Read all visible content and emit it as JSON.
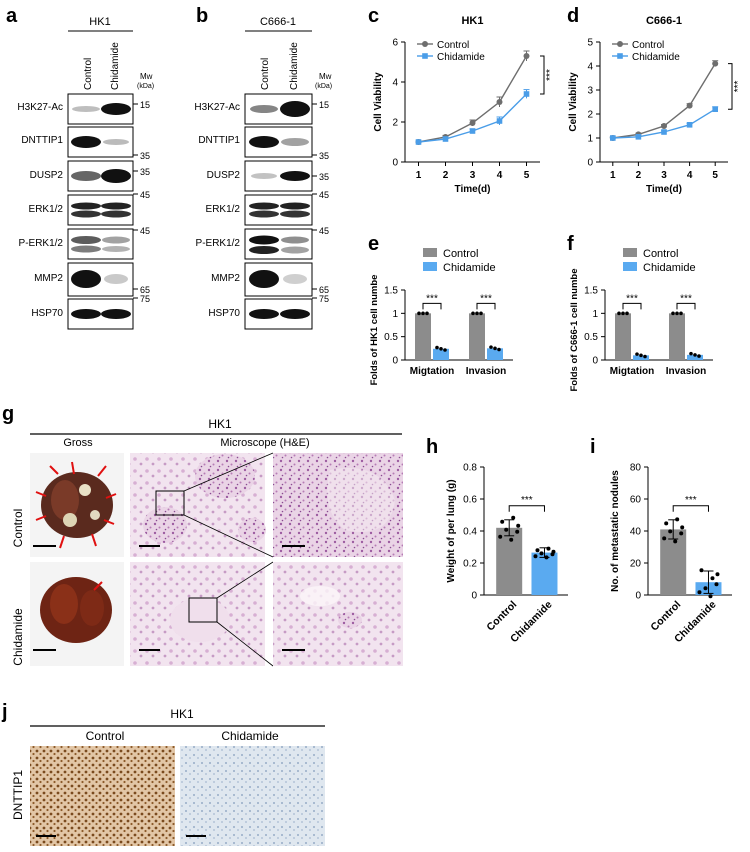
{
  "panel_letters": [
    "a",
    "b",
    "c",
    "d",
    "e",
    "f",
    "g",
    "h",
    "i",
    "j"
  ],
  "panel_a": {
    "cell_line": "HK1",
    "lanes": [
      "Control",
      "Chidamide"
    ],
    "mw_label": "Mw",
    "mw_unit": "(kDa)",
    "bands": [
      "H3K27-Ac",
      "DNTTIP1",
      "DUSP2",
      "ERK1/2",
      "P-ERK1/2",
      "MMP2",
      "HSP70"
    ],
    "markers": [
      "15",
      "35",
      "35",
      "45",
      "45",
      "65",
      "75"
    ]
  },
  "panel_b": {
    "cell_line": "C666-1",
    "lanes": [
      "Control",
      "Chidamide"
    ],
    "mw_label": "Mw",
    "mw_unit": "(kDa)",
    "bands": [
      "H3K27-Ac",
      "DNTTIP1",
      "DUSP2",
      "ERK1/2",
      "P-ERK1/2",
      "MMP2",
      "HSP70"
    ],
    "markers": [
      "15",
      "35",
      "35",
      "45",
      "45",
      "65",
      "75"
    ]
  },
  "legend": {
    "control": "Control",
    "chidamide": "Chidamide"
  },
  "colors": {
    "control": "#6e6e6e",
    "chidamide": "#4a9de8",
    "control_bar": "#8c8c8c",
    "chidamide_bar": "#5aaaf0"
  },
  "significance": "***",
  "chart_data": [
    {
      "panel": "c",
      "type": "line",
      "title": "HK1",
      "xlabel": "Time(d)",
      "ylabel": "Cell Viability",
      "x": [
        1,
        2,
        3,
        4,
        5
      ],
      "xlim": [
        0.5,
        5.5
      ],
      "ylim": [
        0,
        6
      ],
      "yticks": [
        0,
        2,
        4,
        6
      ],
      "series": [
        {
          "name": "Control",
          "values": [
            1.0,
            1.25,
            1.95,
            3.0,
            5.3
          ],
          "err": [
            0.05,
            0.08,
            0.15,
            0.25,
            0.25
          ]
        },
        {
          "name": "Chidamide",
          "values": [
            1.0,
            1.15,
            1.55,
            2.05,
            3.4
          ],
          "err": [
            0.05,
            0.06,
            0.1,
            0.2,
            0.22
          ]
        }
      ]
    },
    {
      "panel": "d",
      "type": "line",
      "title": "C666-1",
      "xlabel": "Time(d)",
      "ylabel": "Cell Viability",
      "x": [
        1,
        2,
        3,
        4,
        5
      ],
      "xlim": [
        0.5,
        5.5
      ],
      "ylim": [
        0,
        5
      ],
      "yticks": [
        0,
        1,
        2,
        3,
        4,
        5
      ],
      "series": [
        {
          "name": "Control",
          "values": [
            1.0,
            1.15,
            1.5,
            2.35,
            4.1
          ],
          "err": [
            0.04,
            0.05,
            0.06,
            0.08,
            0.12
          ]
        },
        {
          "name": "Chidamide",
          "values": [
            1.0,
            1.05,
            1.25,
            1.55,
            2.2
          ],
          "err": [
            0.04,
            0.04,
            0.05,
            0.06,
            0.1
          ]
        }
      ]
    },
    {
      "panel": "e",
      "type": "bar",
      "ylabel": "Folds of HK1 cell numbe",
      "categories": [
        "Migtation",
        "Invasion"
      ],
      "ylim": [
        0,
        1.5
      ],
      "yticks": [
        0,
        0.5,
        1.0,
        1.5
      ],
      "series": [
        {
          "name": "Control",
          "values": [
            1.0,
            1.0
          ]
        },
        {
          "name": "Chidamide",
          "values": [
            0.24,
            0.25
          ]
        }
      ]
    },
    {
      "panel": "f",
      "type": "bar",
      "ylabel": "Folds of C666-1 cell numbe",
      "categories": [
        "Migtation",
        "Invasion"
      ],
      "ylim": [
        0,
        1.5
      ],
      "yticks": [
        0,
        0.5,
        1.0,
        1.5
      ],
      "series": [
        {
          "name": "Control",
          "values": [
            1.0,
            1.0
          ]
        },
        {
          "name": "Chidamide",
          "values": [
            0.1,
            0.11
          ]
        }
      ]
    },
    {
      "panel": "h",
      "type": "bar",
      "ylabel": "Weight of per lung (g)",
      "categories": [
        "Control",
        "Chidamide"
      ],
      "ylim": [
        0,
        0.8
      ],
      "yticks": [
        0,
        0.2,
        0.4,
        0.6,
        0.8
      ],
      "values": [
        0.42,
        0.265
      ],
      "err": [
        0.05,
        0.03
      ]
    },
    {
      "panel": "i",
      "type": "bar",
      "ylabel": "No. of metastatic nodules",
      "categories": [
        "Control",
        "Chidamide"
      ],
      "ylim": [
        0,
        80
      ],
      "yticks": [
        0,
        20,
        40,
        60,
        80
      ],
      "values": [
        41,
        8
      ],
      "err": [
        6,
        7
      ]
    }
  ],
  "panel_g": {
    "cell_line": "HK1",
    "col_gross": "Gross",
    "col_micro": "Microscope (H&E)",
    "rows": [
      "Control",
      "Chidamide"
    ]
  },
  "panel_j": {
    "cell_line": "HK1",
    "cols": [
      "Control",
      "Chidamide"
    ],
    "row": "DNTTIP1"
  }
}
